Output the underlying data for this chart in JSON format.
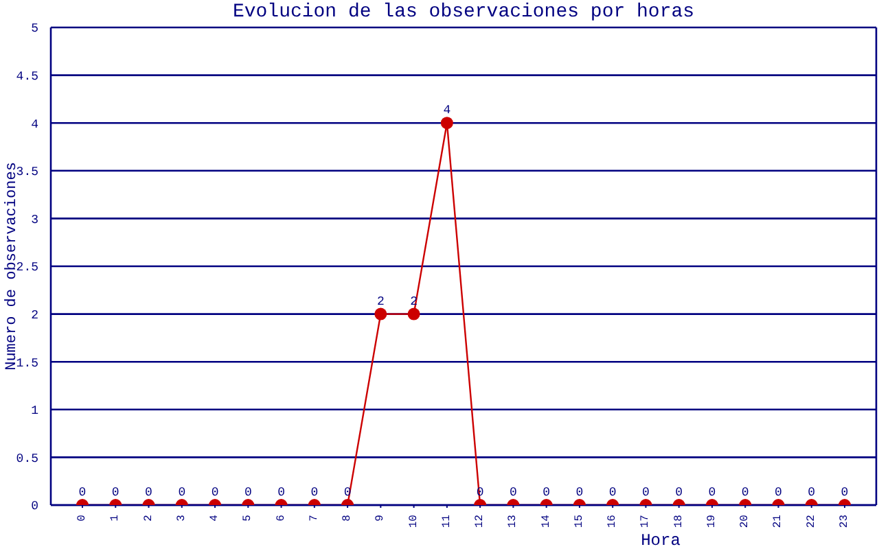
{
  "chart_data": {
    "type": "line",
    "title": "Evolucion de las observaciones por horas",
    "xlabel": "Hora",
    "ylabel": "Numero de observaciones",
    "categories": [
      "0",
      "1",
      "2",
      "3",
      "4",
      "5",
      "6",
      "7",
      "8",
      "9",
      "10",
      "11",
      "12",
      "13",
      "14",
      "15",
      "16",
      "17",
      "18",
      "19",
      "20",
      "21",
      "22",
      "23"
    ],
    "series": [
      {
        "color": "#cc0000",
        "values": [
          0,
          0,
          0,
          0,
          0,
          0,
          0,
          0,
          0,
          2,
          2,
          4,
          0,
          0,
          0,
          0,
          0,
          0,
          0,
          0,
          0,
          0,
          0,
          0
        ]
      }
    ],
    "ylim": [
      0,
      5
    ],
    "yticks": [
      0,
      0.5,
      1,
      1.5,
      2,
      2.5,
      3,
      3.5,
      4,
      4.5,
      5
    ],
    "grid": "y",
    "marker": "circle",
    "line_style": "solid",
    "data_labels": true
  }
}
